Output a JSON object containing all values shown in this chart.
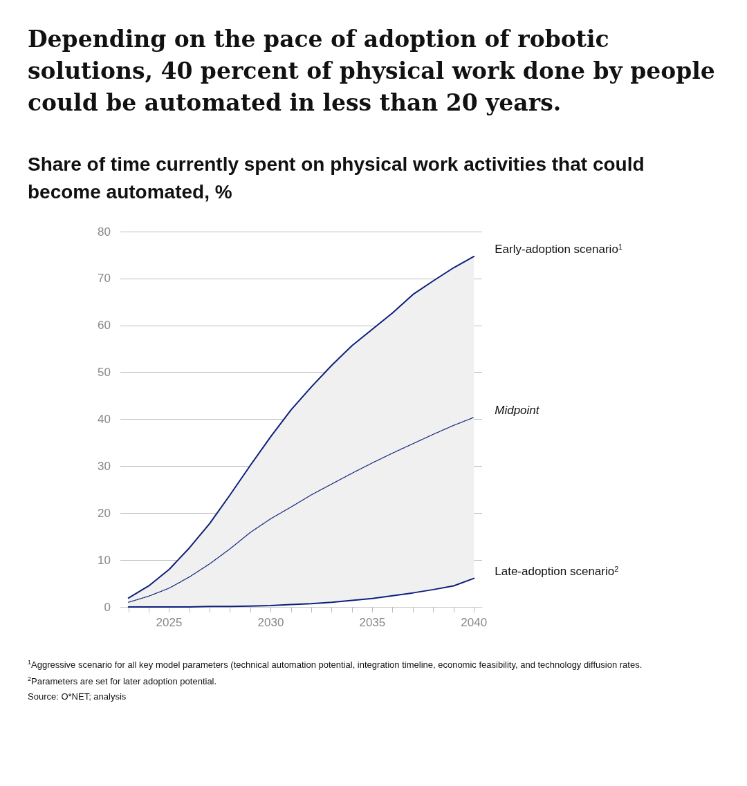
{
  "chart_data": {
    "type": "line",
    "title": "Depending on the pace of adoption of robotic solutions, 40 percent of physical work done by people could be automated in less than 20 years.",
    "subtitle": "Share of time currently spent on physical work activities that could become automated, %",
    "x": [
      2023,
      2024,
      2025,
      2026,
      2027,
      2028,
      2029,
      2030,
      2031,
      2032,
      2033,
      2034,
      2035,
      2036,
      2037,
      2038,
      2039,
      2040
    ],
    "series": [
      {
        "name": "Early-adoption scenario$^{1}$",
        "color": "#0b1f7c",
        "line_style": "solid",
        "values": [
          1.9,
          4.5,
          8.0,
          12.6,
          17.8,
          23.9,
          30.2,
          36.3,
          42.0,
          46.9,
          51.5,
          55.7,
          59.2,
          62.7,
          66.6,
          69.5,
          72.3,
          74.7
        ]
      },
      {
        "name": "Midpoint",
        "color": "#0b1f7c",
        "line_style": "dotted",
        "values": [
          1.0,
          2.3,
          4.0,
          6.4,
          9.2,
          12.4,
          15.9,
          18.8,
          21.3,
          23.9,
          26.2,
          28.5,
          30.7,
          32.8,
          34.8,
          36.8,
          38.7,
          40.4
        ],
        "lower": [
          0,
          0,
          0,
          0,
          0.1,
          0.1,
          0.2,
          0.3,
          0.5,
          0.7,
          1.0,
          1.4,
          1.8,
          2.4,
          3.0,
          3.7,
          4.5,
          6.1
        ],
        "upper": [
          1.9,
          4.5,
          8.0,
          12.6,
          17.8,
          23.9,
          30.2,
          36.3,
          42.0,
          46.9,
          51.5,
          55.7,
          59.2,
          62.7,
          66.6,
          69.5,
          72.3,
          74.7
        ]
      },
      {
        "name": "Late-adoption scenario$^{2}$",
        "color": "#0b1f7c",
        "line_style": "solid",
        "values": [
          0,
          0,
          0,
          0,
          0.1,
          0.1,
          0.2,
          0.3,
          0.5,
          0.7,
          1.0,
          1.4,
          1.8,
          2.4,
          3.0,
          3.7,
          4.5,
          6.1
        ]
      }
    ],
    "xlim": [
      2022.6,
      2040.4
    ],
    "xticks": [
      {
        "value": 2023,
        "label": null
      },
      {
        "value": 2024,
        "label": null
      },
      2025,
      {
        "value": 2026,
        "label": null
      },
      {
        "value": 2027,
        "label": null
      },
      {
        "value": 2028,
        "label": null
      },
      {
        "value": 2029,
        "label": null
      },
      2030,
      {
        "value": 2031,
        "label": null
      },
      {
        "value": 2032,
        "label": null
      },
      {
        "value": 2033,
        "label": null
      },
      {
        "value": 2034,
        "label": null
      },
      2035,
      {
        "value": 2036,
        "label": null
      },
      {
        "value": 2037,
        "label": null
      },
      {
        "value": 2038,
        "label": null
      },
      {
        "value": 2039,
        "label": null
      },
      2040
    ],
    "ylim": [
      0,
      80
    ],
    "yticks": [
      0,
      10,
      20,
      30,
      40,
      50,
      60,
      70,
      80
    ],
    "grid": "y",
    "legend": false,
    "marker": "none",
    "annotations": [
      "$^{1}$Aggressive scenario for all key model parameters (technical automation potential, integration timeline, economic feasibility, and technology diffusion rates.",
      "$^{2}$Parameters are set for later adoption potential.",
      "Source: O*NET; analysis"
    ]
  }
}
